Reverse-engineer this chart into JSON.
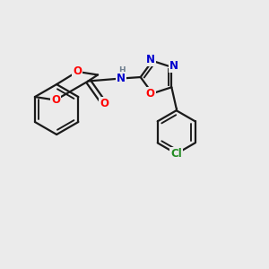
{
  "bg_color": "#ebebeb",
  "bond_color": "#1a1a1a",
  "bond_width": 1.6,
  "atom_colors": {
    "O": "#ff0000",
    "N": "#0000cd",
    "Cl": "#228b22",
    "H": "#708090",
    "C": "#1a1a1a"
  },
  "font_size": 8.5
}
